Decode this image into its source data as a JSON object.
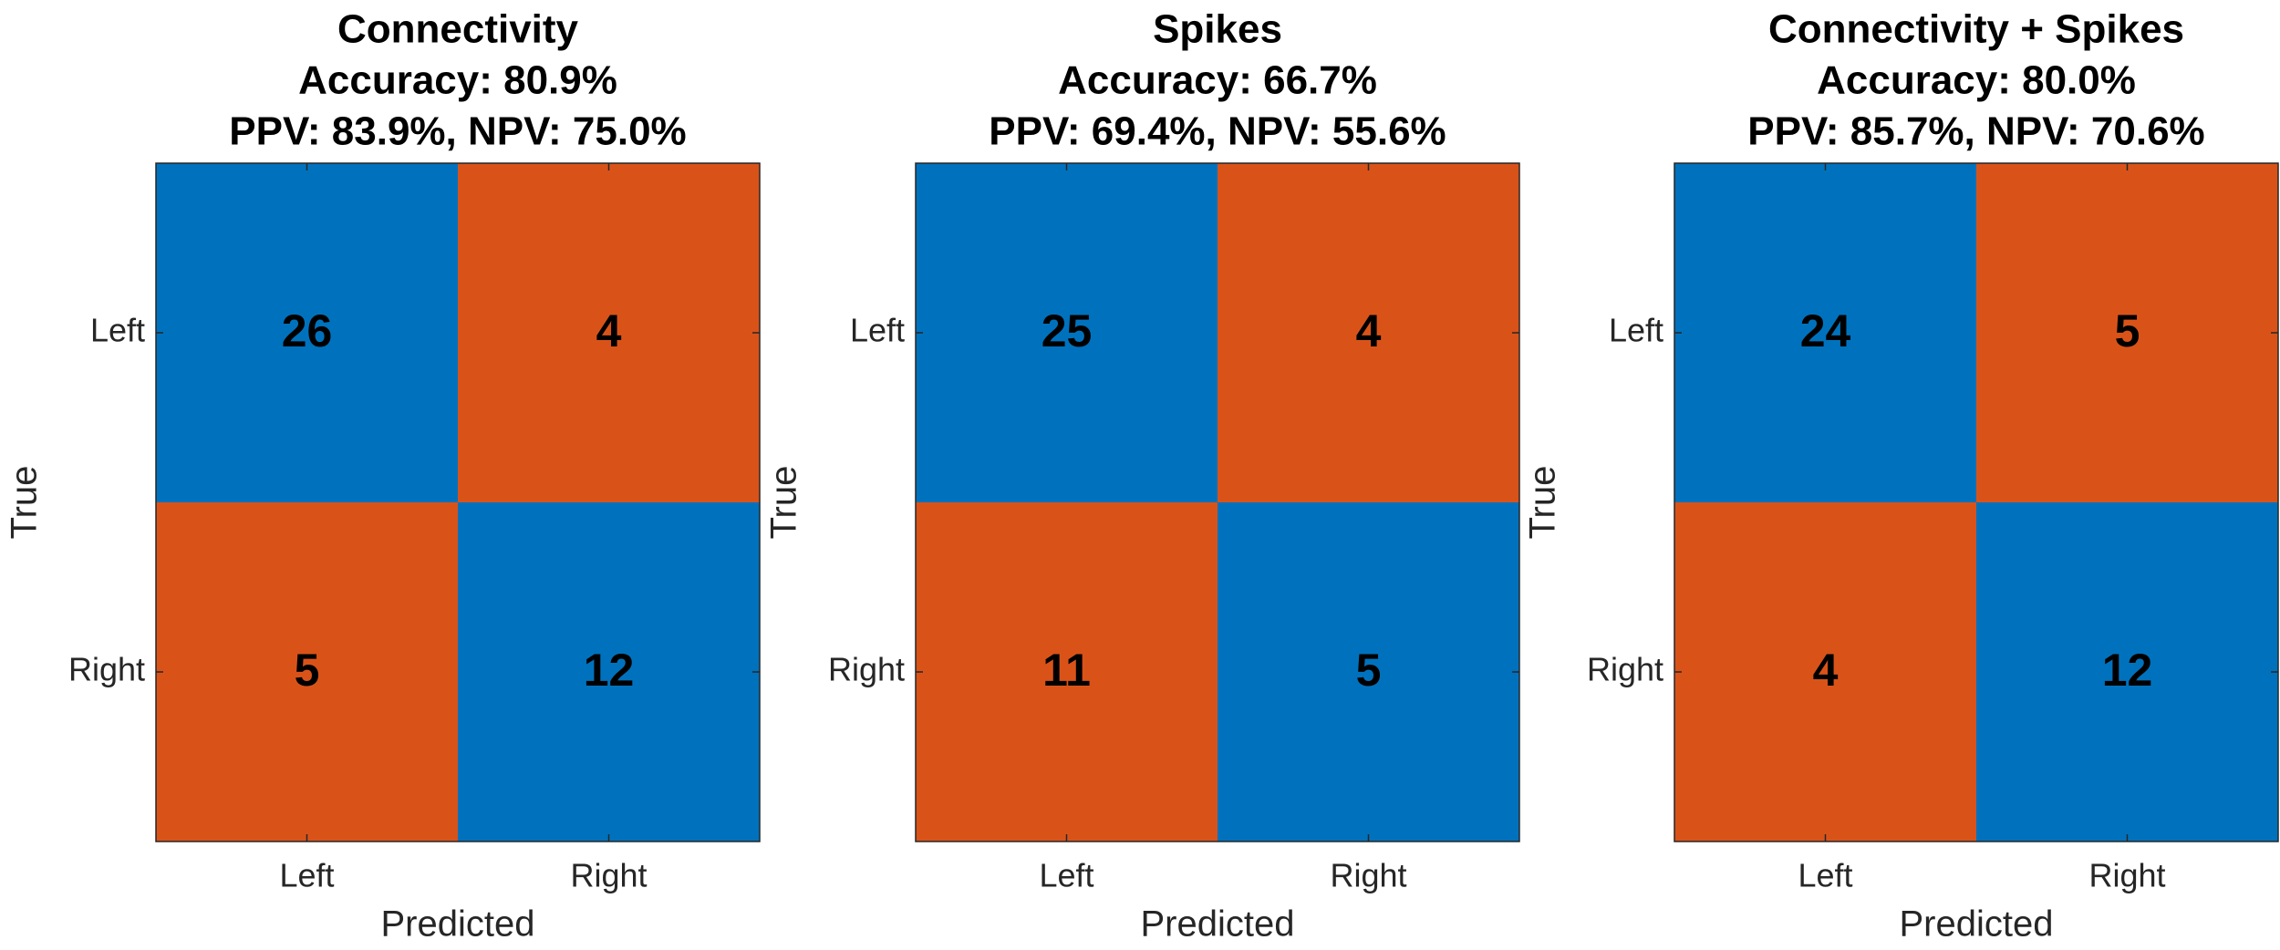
{
  "chart_data": [
    {
      "type": "heatmap",
      "title": [
        "Connectivity",
        "Accuracy: 80.9%",
        "PPV: 83.9%, NPV: 75.0%"
      ],
      "x_categories": [
        "Left",
        "Right"
      ],
      "y_categories": [
        "Left",
        "Right"
      ],
      "xlabel": "Predicted",
      "ylabel": "True",
      "values": [
        [
          26,
          4
        ],
        [
          5,
          12
        ]
      ],
      "diagonal_color": "#0072bd",
      "off_diagonal_color": "#d95319"
    },
    {
      "type": "heatmap",
      "title": [
        "Spikes",
        "Accuracy: 66.7%",
        "PPV: 69.4%, NPV: 55.6%"
      ],
      "x_categories": [
        "Left",
        "Right"
      ],
      "y_categories": [
        "Left",
        "Right"
      ],
      "xlabel": "Predicted",
      "ylabel": "True",
      "values": [
        [
          25,
          4
        ],
        [
          11,
          5
        ]
      ],
      "diagonal_color": "#0072bd",
      "off_diagonal_color": "#d95319"
    },
    {
      "type": "heatmap",
      "title": [
        "Connectivity + Spikes",
        "Accuracy: 80.0%",
        "PPV: 85.7%, NPV: 70.6%"
      ],
      "x_categories": [
        "Left",
        "Right"
      ],
      "y_categories": [
        "Left",
        "Right"
      ],
      "xlabel": "Predicted",
      "ylabel": "True",
      "values": [
        [
          24,
          5
        ],
        [
          4,
          12
        ]
      ],
      "diagonal_color": "#0072bd",
      "off_diagonal_color": "#d95319"
    }
  ]
}
